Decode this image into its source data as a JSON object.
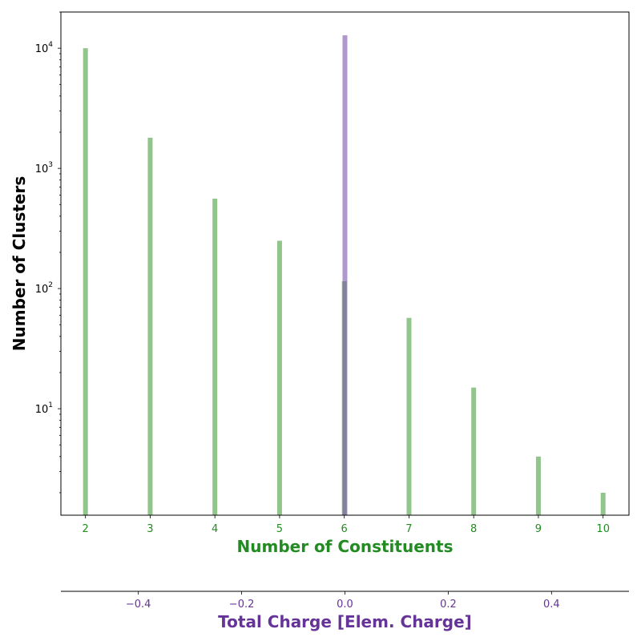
{
  "chart_data": {
    "type": "bar",
    "title": "",
    "ylabel": "Number of Clusters",
    "yscale": "log",
    "ylim": [
      1.3,
      20000
    ],
    "grid": false,
    "y_ticks": [
      {
        "value": 10,
        "label": "10^1"
      },
      {
        "value": 100,
        "label": "10^2"
      },
      {
        "value": 1000,
        "label": "10^3"
      },
      {
        "value": 10000,
        "label": "10^4"
      }
    ],
    "x_bottom": {
      "label": "Number of Constituents",
      "color": "#228B22",
      "xlim": [
        1.62,
        10.4
      ],
      "ticks": [
        2,
        3,
        4,
        5,
        6,
        7,
        8,
        9,
        10
      ]
    },
    "x_top_secondary": {
      "label": "Total Charge [Elem. Charge]",
      "color": "#663399",
      "xlim": [
        -0.55,
        0.55
      ],
      "ticks": [
        -0.4,
        -0.2,
        0.0,
        0.2,
        0.4
      ],
      "tick_labels": [
        "−0.4",
        "−0.2",
        "0.0",
        "0.2",
        "0.4"
      ]
    },
    "series": [
      {
        "axis": "constituents",
        "color": "#4a9e3f",
        "x": [
          2,
          3,
          4,
          5,
          6,
          7,
          8,
          9,
          10
        ],
        "values": [
          10000,
          1800,
          560,
          250,
          115,
          57,
          15,
          4,
          2
        ]
      },
      {
        "axis": "charge",
        "color": "#7b52ab",
        "x": [
          0.0
        ],
        "values": [
          12800
        ]
      }
    ]
  }
}
